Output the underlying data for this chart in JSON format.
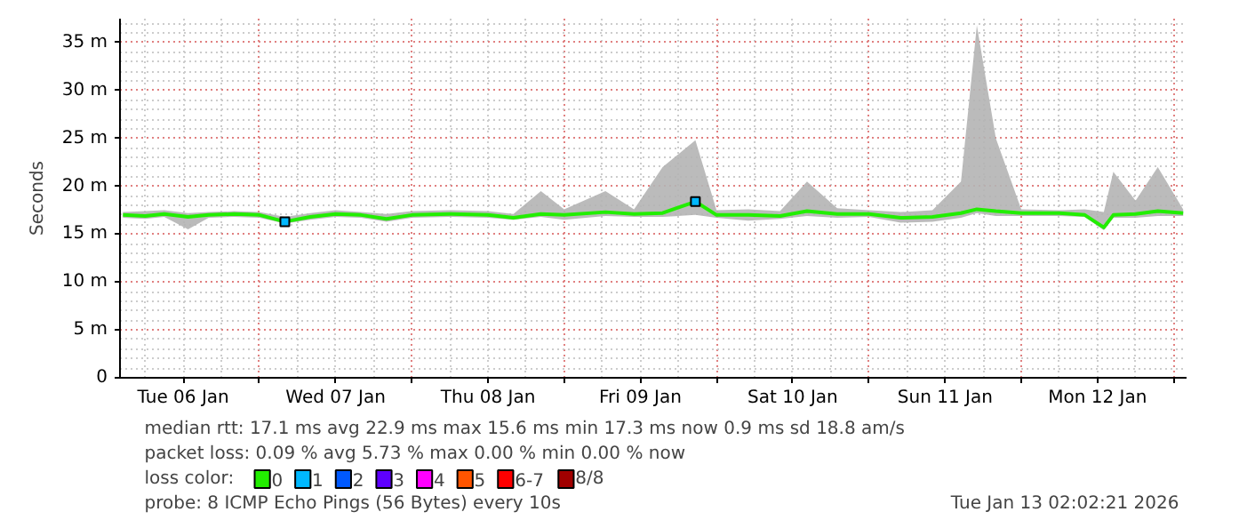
{
  "chart_data": {
    "type": "line",
    "ylabel": "Seconds",
    "legend_title": "loss color:",
    "legend": "bottom",
    "grid": true,
    "line_style": "solid",
    "marker": "none",
    "xlim": [
      "2026-01-06T02:02",
      "2026-01-13T02:02"
    ],
    "xticks": [
      {
        "value": "2026-01-06T12:00",
        "label": "Tue 06 Jan"
      },
      {
        "value": "2026-01-07T00:00",
        "label": null
      },
      {
        "value": "2026-01-07T12:00",
        "label": "Wed 07 Jan"
      },
      {
        "value": "2026-01-08T00:00",
        "label": null
      },
      {
        "value": "2026-01-08T12:00",
        "label": "Thu 08 Jan"
      },
      {
        "value": "2026-01-09T00:00",
        "label": null
      },
      {
        "value": "2026-01-09T12:00",
        "label": "Fri 09 Jan"
      },
      {
        "value": "2026-01-10T00:00",
        "label": null
      },
      {
        "value": "2026-01-10T12:00",
        "label": "Sat 10 Jan"
      },
      {
        "value": "2026-01-11T00:00",
        "label": null
      },
      {
        "value": "2026-01-11T12:00",
        "label": "Sun 11 Jan"
      },
      {
        "value": "2026-01-12T00:00",
        "label": null
      },
      {
        "value": "2026-01-12T12:00",
        "label": "Mon 12 Jan"
      },
      {
        "value": "2026-01-13T00:00",
        "label": null
      }
    ],
    "ylim": [
      0,
      37.5
    ],
    "yticks": [
      {
        "value": 0,
        "label": "0"
      },
      {
        "value": 5,
        "label": "5 m"
      },
      {
        "value": 10,
        "label": "10 m"
      },
      {
        "value": 15,
        "label": "15 m"
      },
      {
        "value": 20,
        "label": "20 m"
      },
      {
        "value": 25,
        "label": "25 m"
      },
      {
        "value": 30,
        "label": "30 m"
      },
      {
        "value": 35,
        "label": "35 m"
      }
    ],
    "x": [
      "2026-01-06T02:30",
      "2026-01-06T06:00",
      "2026-01-06T09:00",
      "2026-01-06T12:45",
      "2026-01-06T16:00",
      "2026-01-06T20:00",
      "2026-01-07T00:00",
      "2026-01-07T04:00",
      "2026-01-07T08:00",
      "2026-01-07T12:00",
      "2026-01-07T16:00",
      "2026-01-07T20:00",
      "2026-01-08T00:00",
      "2026-01-08T06:00",
      "2026-01-08T12:00",
      "2026-01-08T16:00",
      "2026-01-08T20:20",
      "2026-01-09T00:00",
      "2026-01-09T06:30",
      "2026-01-09T11:00",
      "2026-01-09T15:30",
      "2026-01-09T20:40",
      "2026-01-10T00:00",
      "2026-01-10T05:00",
      "2026-01-10T10:00",
      "2026-01-10T14:15",
      "2026-01-10T19:00",
      "2026-01-11T00:00",
      "2026-01-11T05:00",
      "2026-01-11T10:00",
      "2026-01-11T14:30",
      "2026-01-11T17:00",
      "2026-01-11T20:00",
      "2026-01-12T00:00",
      "2026-01-12T06:00",
      "2026-01-12T10:00",
      "2026-01-12T13:00",
      "2026-01-12T14:30",
      "2026-01-12T18:00",
      "2026-01-12T21:30",
      "2026-01-13T01:30"
    ],
    "series": [
      {
        "name": "0",
        "color": "#22ee00",
        "values": [
          17.0,
          16.9,
          17.1,
          16.8,
          17.0,
          17.1,
          17.0,
          16.3,
          16.8,
          17.1,
          17.0,
          16.6,
          17.0,
          17.1,
          17.0,
          16.7,
          17.1,
          17.0,
          17.3,
          17.1,
          17.2,
          18.4,
          17.0,
          17.0,
          16.9,
          17.4,
          17.1,
          17.1,
          16.7,
          16.8,
          17.2,
          17.6,
          17.4,
          17.2,
          17.2,
          17.0,
          15.7,
          17.0,
          17.1,
          17.4,
          17.2
        ],
        "lower": [
          16.7,
          16.6,
          16.8,
          15.5,
          16.7,
          16.8,
          16.7,
          16.1,
          16.5,
          16.8,
          16.7,
          16.3,
          16.7,
          16.8,
          16.7,
          16.5,
          16.8,
          16.5,
          16.9,
          16.8,
          16.8,
          17.0,
          16.7,
          16.4,
          16.6,
          16.9,
          16.7,
          16.8,
          16.2,
          16.3,
          16.7,
          17.2,
          16.9,
          16.9,
          16.9,
          16.8,
          15.4,
          16.7,
          16.7,
          16.9,
          16.9
        ],
        "upper": [
          17.3,
          17.4,
          17.5,
          17.2,
          17.3,
          17.4,
          17.3,
          16.8,
          17.2,
          17.5,
          17.3,
          17.1,
          17.4,
          17.5,
          17.4,
          17.1,
          19.5,
          17.6,
          19.5,
          17.6,
          22.0,
          24.8,
          17.5,
          17.6,
          17.4,
          20.5,
          17.7,
          17.5,
          17.3,
          17.5,
          20.5,
          36.8,
          25.0,
          17.6,
          17.5,
          17.6,
          17.3,
          21.5,
          18.5,
          22.0,
          17.6
        ]
      },
      {
        "name": "1",
        "type": "scatter",
        "marker": "square",
        "color": "#00b8ff",
        "x": [
          "2026-01-07T04:00",
          "2026-01-09T20:40"
        ],
        "values": [
          16.3,
          18.4
        ]
      },
      {
        "name": "2",
        "type": "scatter",
        "marker": "square",
        "color": "#0059ff",
        "values": [
          null,
          null,
          null,
          null,
          null,
          null,
          null,
          null,
          null,
          null,
          null,
          null,
          null,
          null,
          null,
          null,
          null,
          null,
          null,
          null,
          null,
          null,
          null,
          null,
          null,
          null,
          null,
          null,
          null,
          null,
          null,
          null,
          null,
          null,
          null,
          null,
          null,
          null,
          null,
          null,
          null
        ]
      },
      {
        "name": "3",
        "type": "scatter",
        "marker": "square",
        "color": "#5e00ff",
        "values": [
          null,
          null,
          null,
          null,
          null,
          null,
          null,
          null,
          null,
          null,
          null,
          null,
          null,
          null,
          null,
          null,
          null,
          null,
          null,
          null,
          null,
          null,
          null,
          null,
          null,
          null,
          null,
          null,
          null,
          null,
          null,
          null,
          null,
          null,
          null,
          null,
          null,
          null,
          null,
          null,
          null
        ]
      },
      {
        "name": "4",
        "type": "scatter",
        "marker": "square",
        "color": "#ff00ff",
        "values": [
          null,
          null,
          null,
          null,
          null,
          null,
          null,
          null,
          null,
          null,
          null,
          null,
          null,
          null,
          null,
          null,
          null,
          null,
          null,
          null,
          null,
          null,
          null,
          null,
          null,
          null,
          null,
          null,
          null,
          null,
          null,
          null,
          null,
          null,
          null,
          null,
          null,
          null,
          null,
          null,
          null
        ]
      },
      {
        "name": "5",
        "type": "scatter",
        "marker": "square",
        "color": "#ff5500",
        "values": [
          null,
          null,
          null,
          null,
          null,
          null,
          null,
          null,
          null,
          null,
          null,
          null,
          null,
          null,
          null,
          null,
          null,
          null,
          null,
          null,
          null,
          null,
          null,
          null,
          null,
          null,
          null,
          null,
          null,
          null,
          null,
          null,
          null,
          null,
          null,
          null,
          null,
          null,
          null,
          null,
          null
        ]
      },
      {
        "name": "6-7",
        "type": "scatter",
        "marker": "square",
        "color": "#ff0000",
        "values": [
          null,
          null,
          null,
          null,
          null,
          null,
          null,
          null,
          null,
          null,
          null,
          null,
          null,
          null,
          null,
          null,
          null,
          null,
          null,
          null,
          null,
          null,
          null,
          null,
          null,
          null,
          null,
          null,
          null,
          null,
          null,
          null,
          null,
          null,
          null,
          null,
          null,
          null,
          null,
          null,
          null
        ]
      },
      {
        "name": "8/8",
        "type": "scatter",
        "marker": "square",
        "color": "#a10000",
        "values": [
          null,
          null,
          null,
          null,
          null,
          null,
          null,
          null,
          null,
          null,
          null,
          null,
          null,
          null,
          null,
          null,
          null,
          null,
          null,
          null,
          null,
          null,
          null,
          null,
          null,
          null,
          null,
          null,
          null,
          null,
          null,
          null,
          null,
          null,
          null,
          null,
          null,
          null,
          null,
          null,
          null
        ]
      }
    ],
    "annotations": [
      "median rtt:  17.1 ms avg    22.9 ms max    15.6 ms min    17.3 ms now    0.9 ms sd    18.8   am/s",
      "packet loss: 0.09 % avg    5.73 % max    0.00 % min    0.00 % now",
      "probe:        8 ICMP Echo Pings (56 Bytes) every 10s",
      "Tue Jan 13 02:02:21 2026"
    ]
  }
}
